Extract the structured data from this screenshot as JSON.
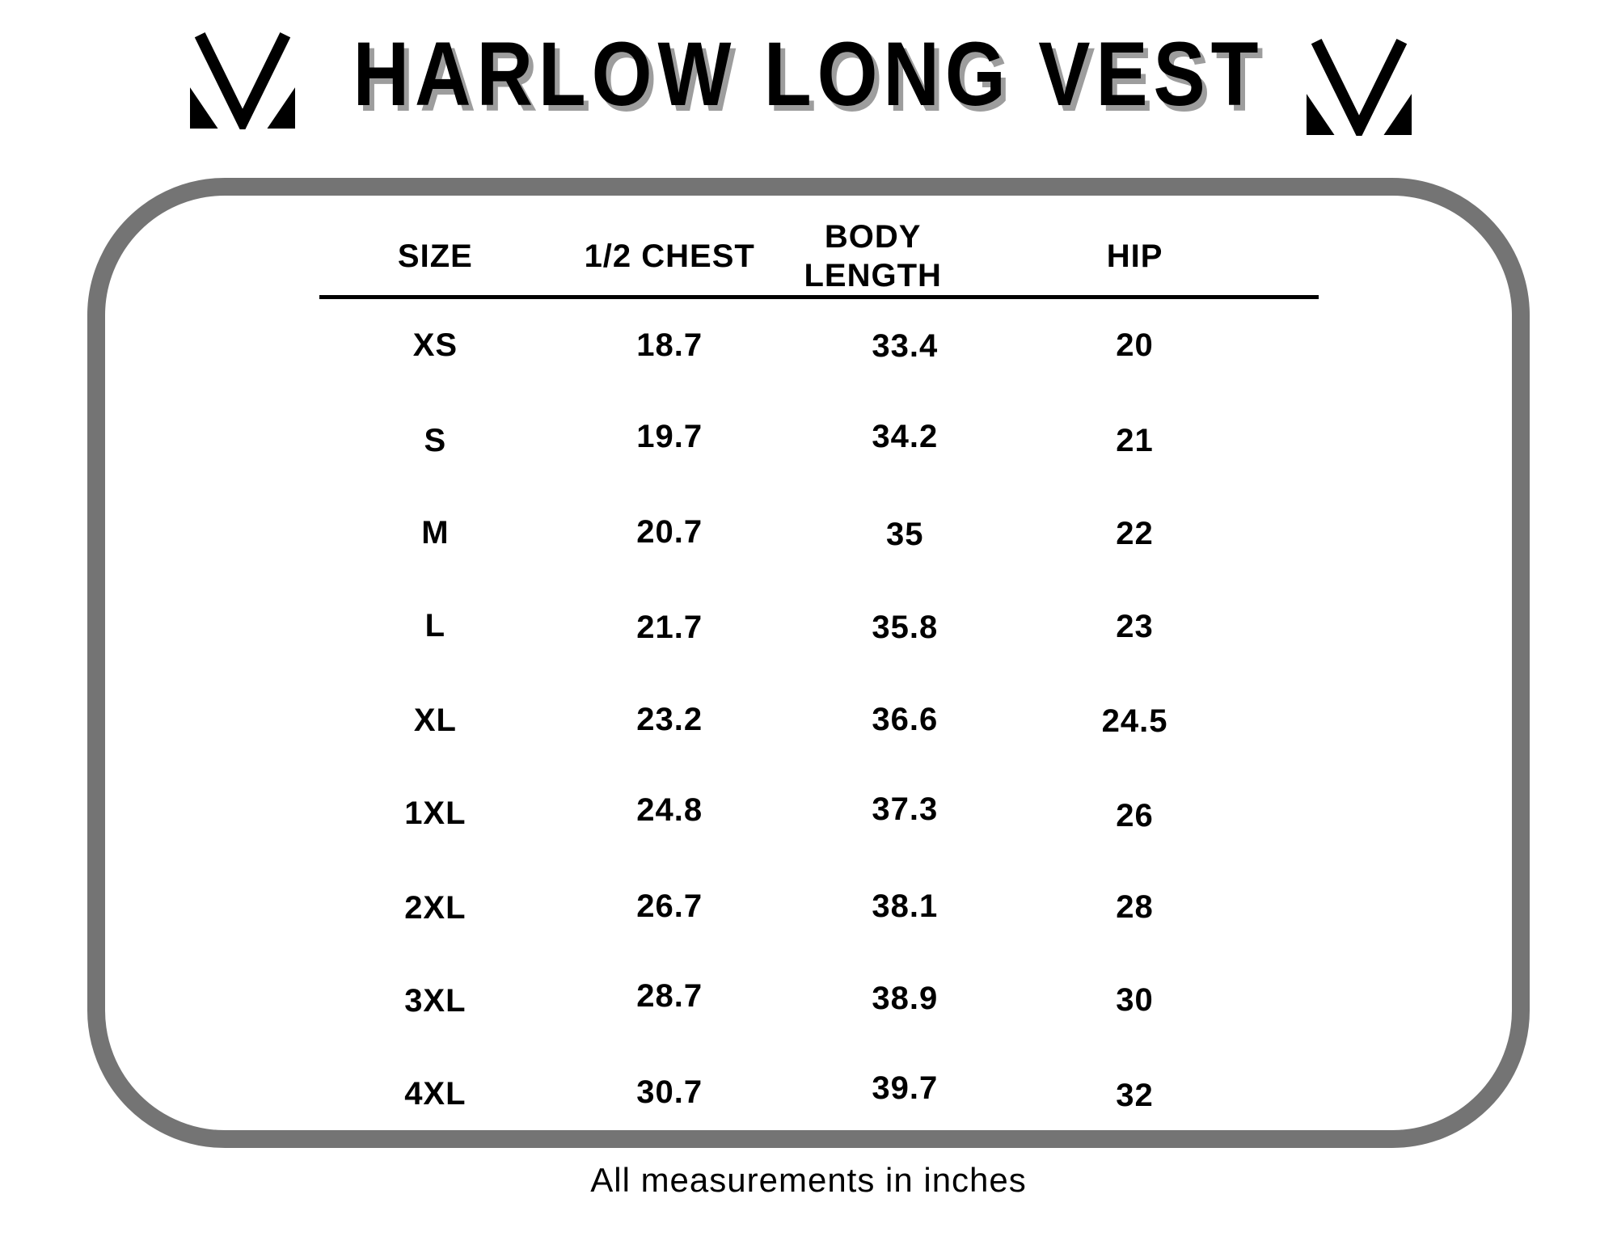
{
  "header": {
    "title": "HARLOW LONG VEST",
    "left_logo_icon": "m-monogram-logo",
    "right_logo_icon": "m-monogram-logo"
  },
  "chart_data": {
    "type": "table",
    "title": "HARLOW LONG VEST",
    "columns": [
      "SIZE",
      "1/2 CHEST",
      "BODY LENGTH",
      "HIP"
    ],
    "rows": [
      [
        "XS",
        18.7,
        33.4,
        20
      ],
      [
        "S",
        19.7,
        34.2,
        21
      ],
      [
        "M",
        20.7,
        35,
        22
      ],
      [
        "L",
        21.7,
        35.8,
        23
      ],
      [
        "XL",
        23.2,
        36.6,
        24.5
      ],
      [
        "1XL",
        24.8,
        37.3,
        26
      ],
      [
        "2XL",
        26.7,
        38.1,
        28
      ],
      [
        "3XL",
        28.7,
        38.9,
        30
      ],
      [
        "4XL",
        30.7,
        39.7,
        32
      ]
    ],
    "note": "All measurements in inches",
    "units": "inches"
  },
  "footer": {
    "note": "All measurements in inches"
  },
  "colors": {
    "frame_gray": "#747474",
    "title_shadow_gray": "#9d9d9d",
    "text_black": "#000000"
  }
}
